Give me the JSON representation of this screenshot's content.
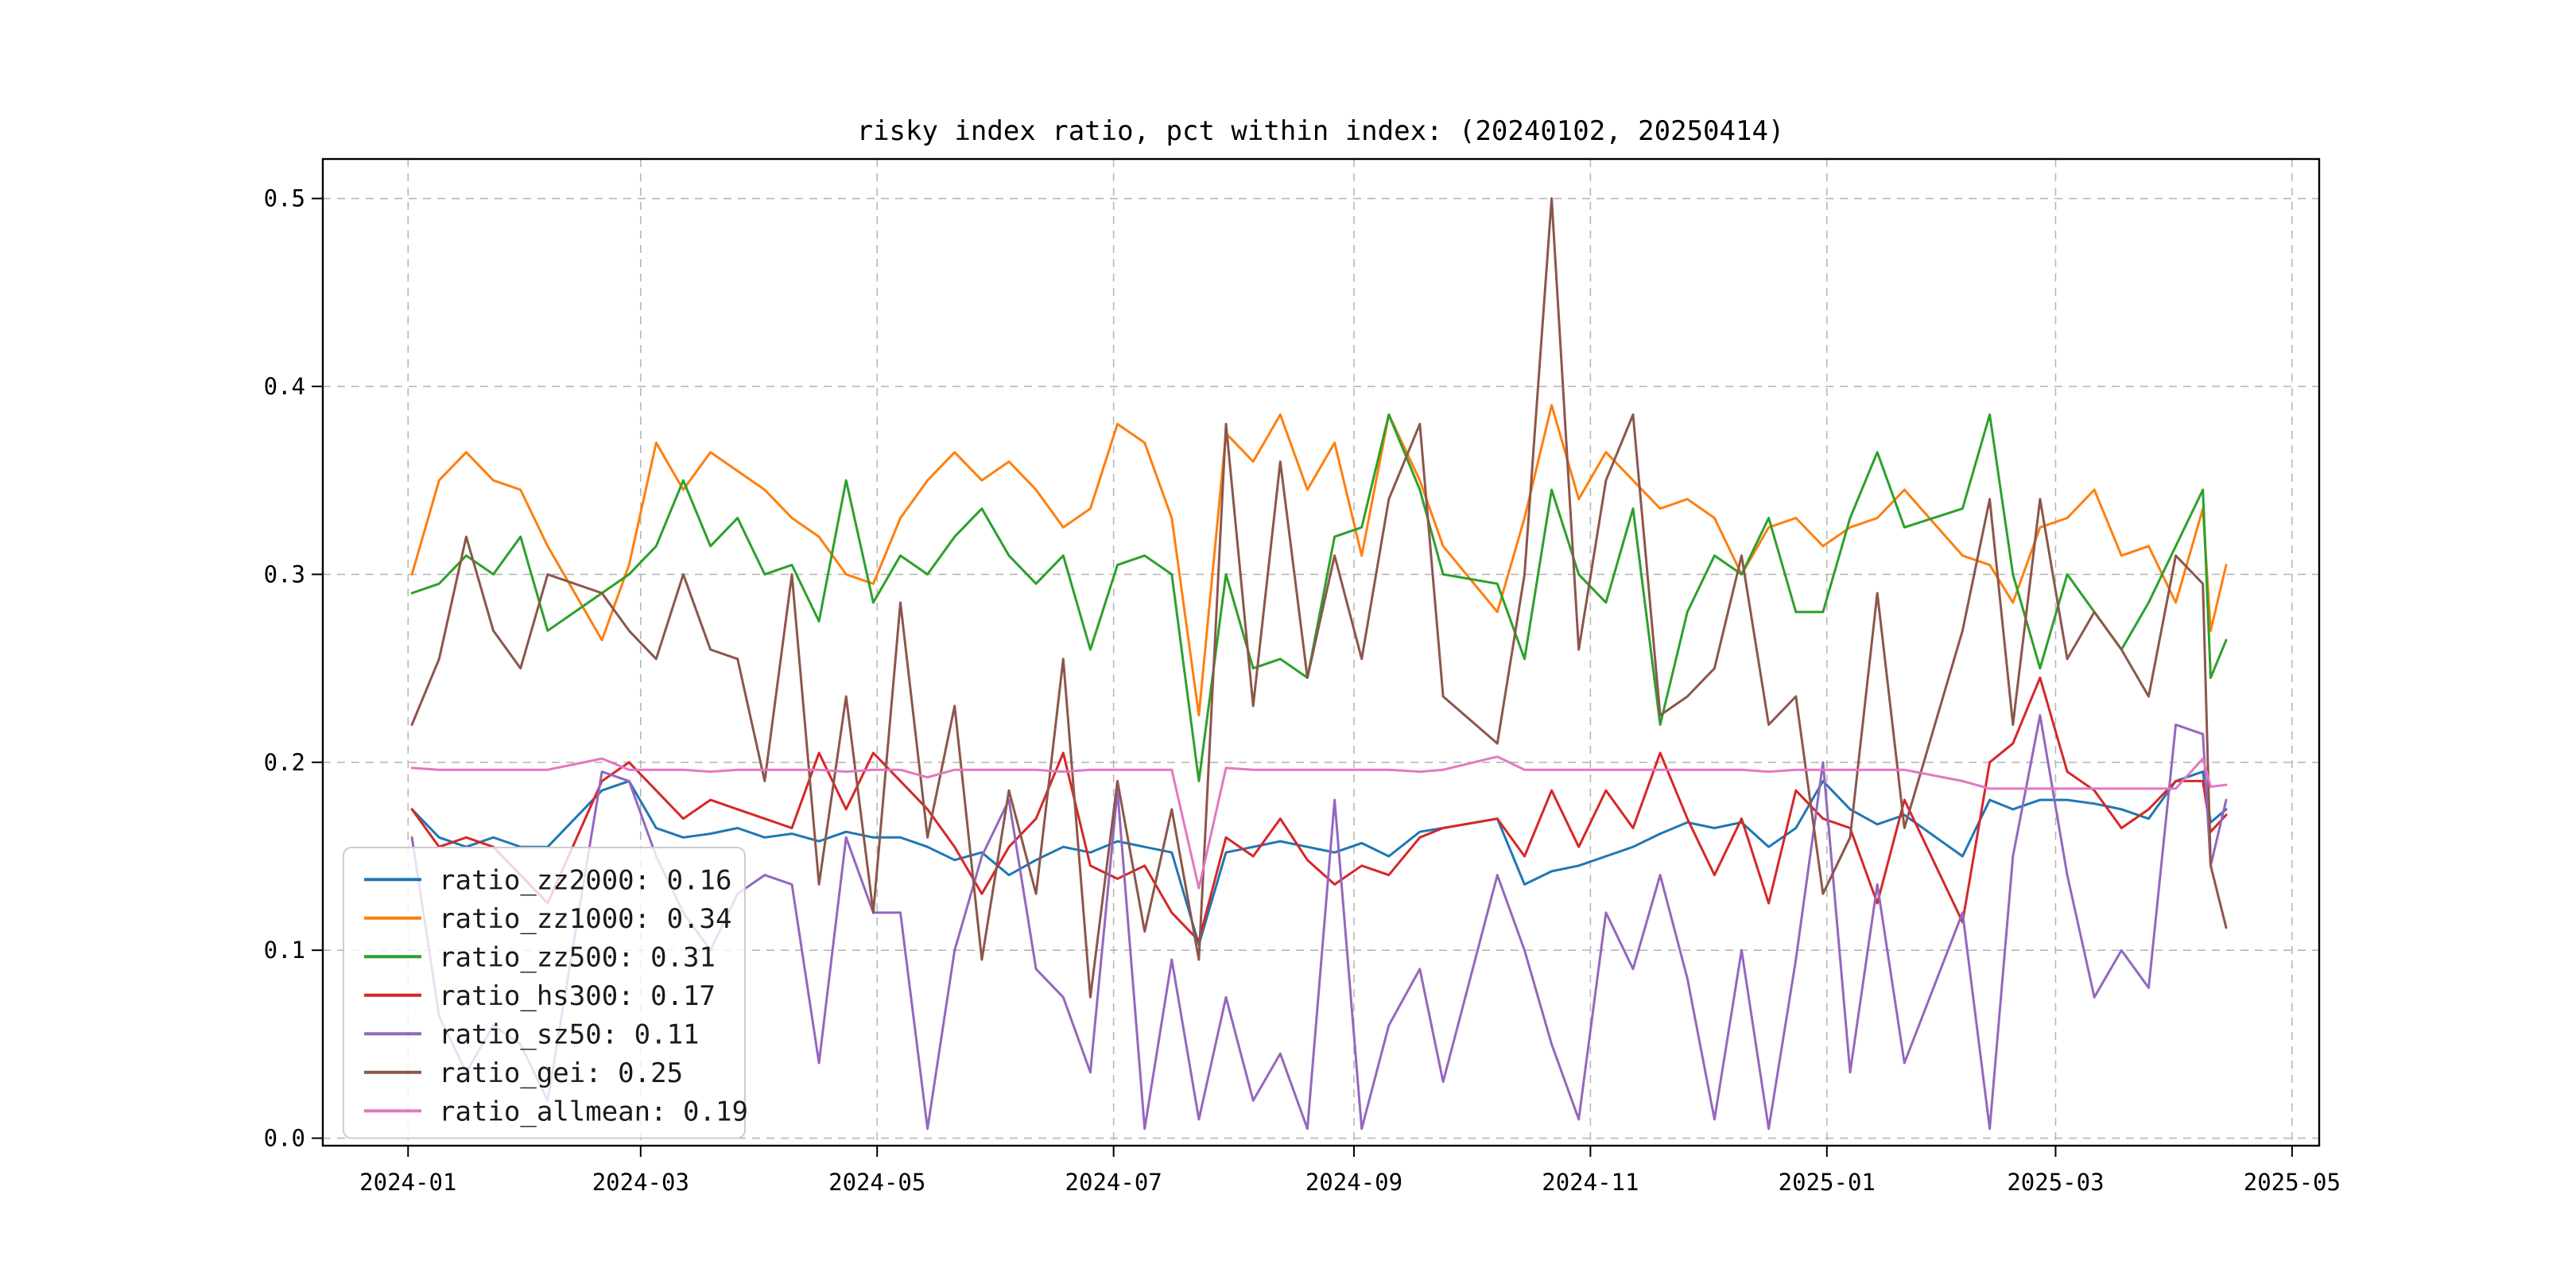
{
  "chart_data": {
    "type": "line",
    "title": "risky index ratio, pct within index: (20240102, 20250414)",
    "xlabel": "",
    "ylabel": "",
    "grid": true,
    "grid_color": "#b0b0b0",
    "background_color": "#ffffff",
    "legend_position": "lower left",
    "xlim_dates": [
      "2023-12-10",
      "2025-05-08"
    ],
    "ylim": [
      -0.004,
      0.521
    ],
    "yticks": [
      {
        "value": 0.0,
        "label": "0.0"
      },
      {
        "value": 0.1,
        "label": "0.1"
      },
      {
        "value": 0.2,
        "label": "0.2"
      },
      {
        "value": 0.3,
        "label": "0.3"
      },
      {
        "value": 0.4,
        "label": "0.4"
      },
      {
        "value": 0.5,
        "label": "0.5"
      }
    ],
    "xticks": [
      {
        "date": "2024-01-01",
        "label": "2024-01"
      },
      {
        "date": "2024-03-01",
        "label": "2024-03"
      },
      {
        "date": "2024-05-01",
        "label": "2024-05"
      },
      {
        "date": "2024-07-01",
        "label": "2024-07"
      },
      {
        "date": "2024-09-01",
        "label": "2024-09"
      },
      {
        "date": "2024-11-01",
        "label": "2024-11"
      },
      {
        "date": "2025-01-01",
        "label": "2025-01"
      },
      {
        "date": "2025-03-01",
        "label": "2025-03"
      },
      {
        "date": "2025-05-01",
        "label": "2025-05"
      }
    ],
    "x_dates": [
      "2024-01-02",
      "2024-01-09",
      "2024-01-16",
      "2024-01-23",
      "2024-01-30",
      "2024-02-06",
      "2024-02-20",
      "2024-02-27",
      "2024-03-05",
      "2024-03-12",
      "2024-03-19",
      "2024-03-26",
      "2024-04-02",
      "2024-04-09",
      "2024-04-16",
      "2024-04-23",
      "2024-04-30",
      "2024-05-07",
      "2024-05-14",
      "2024-05-21",
      "2024-05-28",
      "2024-06-04",
      "2024-06-11",
      "2024-06-18",
      "2024-06-25",
      "2024-07-02",
      "2024-07-09",
      "2024-07-16",
      "2024-07-23",
      "2024-07-30",
      "2024-08-06",
      "2024-08-13",
      "2024-08-20",
      "2024-08-27",
      "2024-09-03",
      "2024-09-10",
      "2024-09-18",
      "2024-09-24",
      "2024-10-08",
      "2024-10-15",
      "2024-10-22",
      "2024-10-29",
      "2024-11-05",
      "2024-11-12",
      "2024-11-19",
      "2024-11-26",
      "2024-12-03",
      "2024-12-10",
      "2024-12-17",
      "2024-12-24",
      "2024-12-31",
      "2025-01-07",
      "2025-01-14",
      "2025-01-21",
      "2025-02-05",
      "2025-02-12",
      "2025-02-18",
      "2025-02-25",
      "2025-03-04",
      "2025-03-11",
      "2025-03-18",
      "2025-03-25",
      "2025-04-01",
      "2025-04-08",
      "2025-04-10",
      "2025-04-14"
    ],
    "series": [
      {
        "name": "ratio_zz2000",
        "legend_label": "ratio_zz2000: 0.16",
        "mean": 0.16,
        "color": "#1f77b4",
        "values": [
          0.175,
          0.16,
          0.155,
          0.16,
          0.155,
          0.155,
          0.185,
          0.19,
          0.165,
          0.16,
          0.162,
          0.165,
          0.16,
          0.162,
          0.158,
          0.163,
          0.16,
          0.16,
          0.155,
          0.148,
          0.152,
          0.14,
          0.148,
          0.155,
          0.152,
          0.158,
          0.155,
          0.152,
          0.103,
          0.152,
          0.155,
          0.158,
          0.155,
          0.152,
          0.157,
          0.15,
          0.163,
          0.165,
          0.17,
          0.135,
          0.142,
          0.145,
          0.15,
          0.155,
          0.162,
          0.168,
          0.165,
          0.168,
          0.155,
          0.165,
          0.19,
          0.175,
          0.167,
          0.172,
          0.15,
          0.18,
          0.175,
          0.18,
          0.18,
          0.178,
          0.175,
          0.17,
          0.19,
          0.195,
          0.168,
          0.175
        ]
      },
      {
        "name": "ratio_zz1000",
        "legend_label": "ratio_zz1000: 0.34",
        "mean": 0.34,
        "color": "#ff7f0e",
        "values": [
          0.3,
          0.35,
          0.365,
          0.35,
          0.345,
          0.315,
          0.265,
          0.305,
          0.37,
          0.345,
          0.365,
          0.355,
          0.345,
          0.33,
          0.32,
          0.3,
          0.295,
          0.33,
          0.35,
          0.365,
          0.35,
          0.36,
          0.345,
          0.325,
          0.335,
          0.38,
          0.37,
          0.33,
          0.225,
          0.375,
          0.36,
          0.385,
          0.345,
          0.37,
          0.31,
          0.385,
          0.35,
          0.315,
          0.28,
          0.33,
          0.39,
          0.34,
          0.365,
          0.35,
          0.335,
          0.34,
          0.33,
          0.3,
          0.325,
          0.33,
          0.315,
          0.325,
          0.33,
          0.345,
          0.31,
          0.305,
          0.285,
          0.325,
          0.33,
          0.345,
          0.31,
          0.315,
          0.285,
          0.335,
          0.27,
          0.305
        ]
      },
      {
        "name": "ratio_zz500",
        "legend_label": "ratio_zz500: 0.31",
        "mean": 0.31,
        "color": "#2ca02c",
        "values": [
          0.29,
          0.295,
          0.31,
          0.3,
          0.32,
          0.27,
          0.29,
          0.3,
          0.315,
          0.35,
          0.315,
          0.33,
          0.3,
          0.305,
          0.275,
          0.35,
          0.285,
          0.31,
          0.3,
          0.32,
          0.335,
          0.31,
          0.295,
          0.31,
          0.26,
          0.305,
          0.31,
          0.3,
          0.19,
          0.3,
          0.25,
          0.255,
          0.245,
          0.32,
          0.325,
          0.385,
          0.345,
          0.3,
          0.295,
          0.255,
          0.345,
          0.3,
          0.285,
          0.335,
          0.22,
          0.28,
          0.31,
          0.3,
          0.33,
          0.28,
          0.28,
          0.33,
          0.365,
          0.325,
          0.335,
          0.385,
          0.3,
          0.25,
          0.3,
          0.28,
          0.26,
          0.285,
          0.315,
          0.345,
          0.245,
          0.265
        ]
      },
      {
        "name": "ratio_hs300",
        "legend_label": "ratio_hs300: 0.17",
        "mean": 0.17,
        "color": "#d62728",
        "values": [
          0.175,
          0.155,
          0.16,
          0.155,
          0.14,
          0.125,
          0.19,
          0.2,
          0.185,
          0.17,
          0.18,
          0.175,
          0.17,
          0.165,
          0.205,
          0.175,
          0.205,
          0.19,
          0.175,
          0.155,
          0.13,
          0.155,
          0.17,
          0.205,
          0.145,
          0.138,
          0.145,
          0.12,
          0.105,
          0.16,
          0.15,
          0.17,
          0.148,
          0.135,
          0.145,
          0.14,
          0.16,
          0.165,
          0.17,
          0.15,
          0.185,
          0.155,
          0.185,
          0.165,
          0.205,
          0.17,
          0.14,
          0.17,
          0.125,
          0.185,
          0.17,
          0.165,
          0.125,
          0.18,
          0.115,
          0.2,
          0.21,
          0.245,
          0.195,
          0.185,
          0.165,
          0.175,
          0.19,
          0.19,
          0.163,
          0.172
        ]
      },
      {
        "name": "ratio_sz50",
        "legend_label": "ratio_sz50: 0.11",
        "mean": 0.11,
        "color": "#9467bd",
        "values": [
          0.16,
          0.065,
          0.035,
          0.06,
          0.05,
          0.02,
          0.195,
          0.19,
          0.15,
          0.12,
          0.1,
          0.13,
          0.14,
          0.135,
          0.04,
          0.16,
          0.12,
          0.12,
          0.005,
          0.1,
          0.15,
          0.18,
          0.09,
          0.075,
          0.035,
          0.185,
          0.005,
          0.095,
          0.01,
          0.075,
          0.02,
          0.045,
          0.005,
          0.18,
          0.005,
          0.06,
          0.09,
          0.03,
          0.14,
          0.1,
          0.05,
          0.01,
          0.12,
          0.09,
          0.14,
          0.085,
          0.01,
          0.1,
          0.005,
          0.095,
          0.2,
          0.035,
          0.135,
          0.04,
          0.12,
          0.005,
          0.15,
          0.225,
          0.14,
          0.075,
          0.1,
          0.08,
          0.22,
          0.215,
          0.145,
          0.18
        ]
      },
      {
        "name": "ratio_gei",
        "legend_label": "ratio_gei: 0.25",
        "mean": 0.25,
        "color": "#8c564b",
        "values": [
          0.22,
          0.255,
          0.32,
          0.27,
          0.25,
          0.3,
          0.29,
          0.27,
          0.255,
          0.3,
          0.26,
          0.255,
          0.19,
          0.3,
          0.135,
          0.235,
          0.12,
          0.285,
          0.16,
          0.23,
          0.095,
          0.185,
          0.13,
          0.255,
          0.075,
          0.19,
          0.11,
          0.175,
          0.095,
          0.38,
          0.23,
          0.36,
          0.245,
          0.31,
          0.255,
          0.34,
          0.38,
          0.235,
          0.21,
          0.3,
          0.5,
          0.26,
          0.35,
          0.385,
          0.225,
          0.235,
          0.25,
          0.31,
          0.22,
          0.235,
          0.13,
          0.16,
          0.29,
          0.165,
          0.27,
          0.34,
          0.22,
          0.34,
          0.255,
          0.28,
          0.26,
          0.235,
          0.31,
          0.295,
          0.145,
          0.112
        ]
      },
      {
        "name": "ratio_allmean",
        "legend_label": "ratio_allmean: 0.19",
        "mean": 0.19,
        "color": "#e377c2",
        "values": [
          0.197,
          0.196,
          0.196,
          0.196,
          0.196,
          0.196,
          0.202,
          0.196,
          0.196,
          0.196,
          0.195,
          0.196,
          0.196,
          0.196,
          0.196,
          0.195,
          0.196,
          0.196,
          0.192,
          0.196,
          0.196,
          0.196,
          0.196,
          0.195,
          0.196,
          0.196,
          0.196,
          0.196,
          0.133,
          0.197,
          0.196,
          0.196,
          0.196,
          0.196,
          0.196,
          0.196,
          0.195,
          0.196,
          0.203,
          0.196,
          0.196,
          0.196,
          0.196,
          0.196,
          0.196,
          0.196,
          0.196,
          0.196,
          0.195,
          0.196,
          0.196,
          0.196,
          0.196,
          0.196,
          0.19,
          0.186,
          0.186,
          0.186,
          0.186,
          0.186,
          0.186,
          0.186,
          0.186,
          0.202,
          0.187,
          0.188
        ]
      }
    ]
  }
}
